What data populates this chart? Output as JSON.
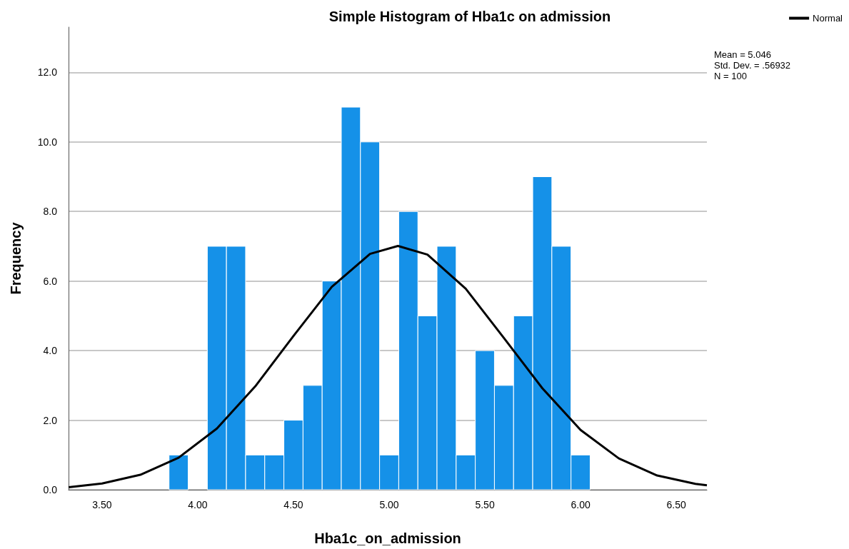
{
  "chart_data": {
    "type": "histogram",
    "title": "Simple Histogram of Hba1c on admission",
    "xlabel": "Hba1c_on_admission",
    "ylabel": "Frequency",
    "bins": [
      3.85,
      3.95,
      4.05,
      4.15,
      4.25,
      4.35,
      4.45,
      4.55,
      4.65,
      4.75,
      4.85,
      4.95,
      5.05,
      5.15,
      5.25,
      5.35,
      5.45,
      5.55,
      5.65,
      5.75,
      5.85,
      5.95,
      6.05
    ],
    "values": [
      1,
      0,
      7,
      7,
      1,
      1,
      2,
      3,
      6,
      11,
      10,
      1,
      8,
      5,
      7,
      1,
      4,
      3,
      5,
      9,
      7,
      1
    ],
    "color": "#1591e8",
    "series": [
      {
        "type": "line",
        "name": "Normal",
        "color": "#000000",
        "x": [
          3.325,
          3.5,
          3.7,
          3.9,
          4.1,
          4.3,
          4.5,
          4.7,
          4.9,
          5.046,
          5.2,
          5.4,
          5.6,
          5.8,
          6.0,
          6.2,
          6.4,
          6.6,
          6.66
        ],
        "values": [
          0.07,
          0.18,
          0.43,
          0.92,
          1.76,
          2.97,
          4.42,
          5.83,
          6.78,
          7.01,
          6.76,
          5.78,
          4.36,
          2.92,
          1.72,
          0.9,
          0.41,
          0.17,
          0.13
        ]
      }
    ],
    "xlim": [
      3.325,
      6.66
    ],
    "xticks": [
      {
        "value": 3.5,
        "label": "3.50"
      },
      {
        "value": 4,
        "label": "4.00"
      },
      {
        "value": 4.5,
        "label": "4.50"
      },
      {
        "value": 5,
        "label": "5.00"
      },
      {
        "value": 5.5,
        "label": "5.50"
      },
      {
        "value": 6,
        "label": "6.00"
      },
      {
        "value": 6.5,
        "label": "6.50"
      }
    ],
    "ylim": [
      0,
      13.3
    ],
    "yticks": [
      {
        "value": 0,
        "label": "0.0"
      },
      {
        "value": 2,
        "label": "2.0"
      },
      {
        "value": 4,
        "label": "4.0"
      },
      {
        "value": 6,
        "label": "6.0"
      },
      {
        "value": 8,
        "label": "8.0"
      },
      {
        "value": 10,
        "label": "10.0"
      },
      {
        "value": 12,
        "label": "12.0"
      }
    ],
    "grid": "y",
    "legend": "top right",
    "marker": "none",
    "annotations": [
      "Mean = 5.046",
      "Std. Dev. = .56932",
      "N = 100"
    ]
  }
}
